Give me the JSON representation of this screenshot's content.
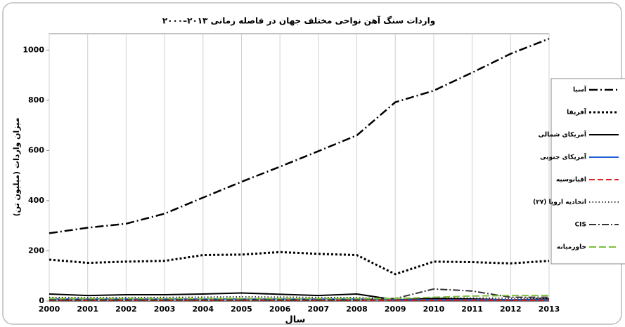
{
  "chart_data": {
    "type": "line",
    "title": "واردات سنگ آهن نواحی مختلف جهان در فاصله زمانی ۲۰۱۳–۲۰۰۰",
    "xlabel": "سال",
    "ylabel": "میزان واردات (میلیون تن)",
    "x": [
      2000,
      2001,
      2002,
      2003,
      2004,
      2005,
      2006,
      2007,
      2008,
      2009,
      2010,
      2011,
      2012,
      2013
    ],
    "xlim": [
      2000,
      2013
    ],
    "xticks": [
      2000,
      2001,
      2002,
      2003,
      2004,
      2005,
      2006,
      2007,
      2008,
      2009,
      2010,
      2011,
      2012,
      2013
    ],
    "ylim": [
      0,
      1065
    ],
    "yticks": [
      0,
      200,
      400,
      600,
      800,
      1000
    ],
    "grid": "x",
    "legend": "right",
    "series": [
      {
        "name": "آسیا",
        "color": "#000000",
        "dash": "12 4 2 4",
        "width": 2.5,
        "values": [
          270,
          292,
          308,
          348,
          412,
          475,
          535,
          597,
          660,
          792,
          838,
          910,
          985,
          1045
        ]
      },
      {
        "name": "آفریقا",
        "color": "#000000",
        "dash": "3 3",
        "width": 3,
        "values": [
          165,
          152,
          157,
          160,
          183,
          185,
          195,
          188,
          183,
          107,
          157,
          155,
          150,
          160
        ]
      },
      {
        "name": "آمریکای شمالی",
        "color": "#000000",
        "dash": "none",
        "width": 2,
        "values": [
          28,
          22,
          25,
          25,
          28,
          32,
          27,
          22,
          28,
          5,
          10,
          8,
          5,
          8
        ]
      },
      {
        "name": "آمریکای جنوبی",
        "color": "#1f5fd6",
        "dash": "none",
        "width": 2,
        "values": [
          8,
          8,
          8,
          8,
          8,
          8,
          8,
          8,
          8,
          5,
          5,
          5,
          5,
          5
        ]
      },
      {
        "name": "اقیانوسیه",
        "color": "#e02020",
        "dash": "8 4",
        "width": 2,
        "values": [
          3,
          3,
          3,
          3,
          3,
          3,
          3,
          3,
          3,
          3,
          3,
          3,
          3,
          3
        ]
      },
      {
        "name": "اتحادیه اروپا (۲۷)",
        "color": "#000000",
        "dash": "1.5 3",
        "width": 1.5,
        "values": [
          15,
          14,
          14,
          15,
          16,
          17,
          16,
          15,
          14,
          8,
          12,
          12,
          11,
          12
        ]
      },
      {
        "name": "CIS",
        "color": "#333333",
        "dash": "10 3 2 3",
        "width": 2,
        "values": [
          5,
          5,
          5,
          5,
          5,
          5,
          5,
          5,
          5,
          10,
          48,
          40,
          15,
          15
        ]
      },
      {
        "name": "خاورمیانه",
        "color": "#7fbf3f",
        "dash": "10 4",
        "width": 2,
        "values": [
          10,
          10,
          10,
          10,
          10,
          10,
          10,
          10,
          10,
          10,
          15,
          20,
          22,
          22
        ]
      }
    ]
  }
}
